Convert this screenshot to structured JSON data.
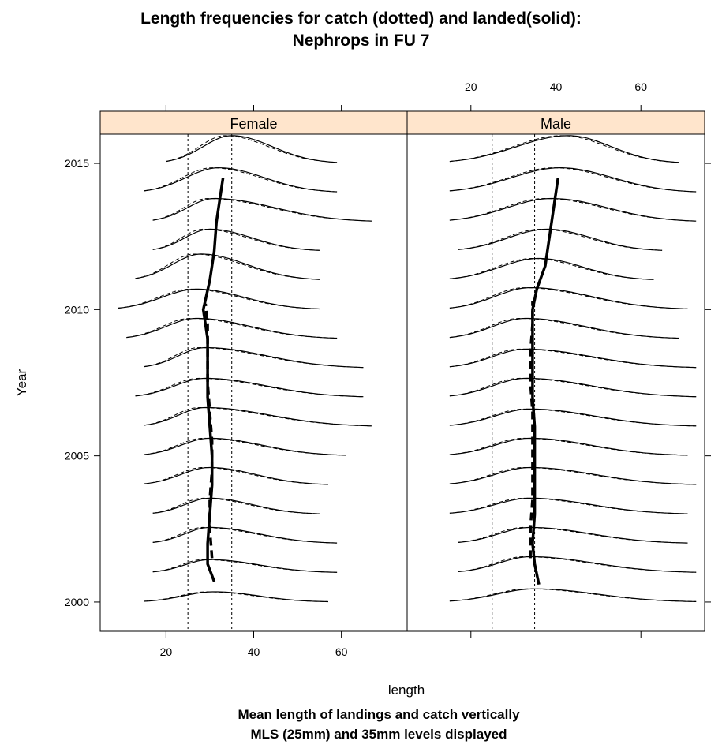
{
  "chart_data": {
    "type": "line",
    "title": "Length frequencies for catch (dotted) and landed(solid):",
    "subtitle": "Nephrops in FU 7",
    "xlabel": "length",
    "ylabel": "Year",
    "notes": [
      "Mean length of landings and catch vertically",
      "MLS (25mm) and 35mm levels displayed"
    ],
    "panels": [
      "Female",
      "Male"
    ],
    "strip_color": "#ffe5cc",
    "xlim": [
      5,
      75
    ],
    "ylim": [
      1999,
      2016
    ],
    "xticks": [
      20,
      40,
      60
    ],
    "yticks": [
      2000,
      2005,
      2010,
      2015
    ],
    "reference_lines": [
      25,
      35
    ],
    "years": [
      2000,
      2001,
      2002,
      2003,
      2004,
      2005,
      2006,
      2007,
      2008,
      2009,
      2010,
      2011,
      2012,
      2013,
      2014,
      2015
    ],
    "series": [
      {
        "name": "Female",
        "curves": [
          {
            "year": 2000,
            "min": 15,
            "max": 57,
            "mode": 31,
            "height": 0.35
          },
          {
            "year": 2001,
            "min": 17,
            "max": 59,
            "mode": 30,
            "height": 0.45
          },
          {
            "year": 2002,
            "min": 17,
            "max": 59,
            "mode": 30,
            "height": 0.55
          },
          {
            "year": 2003,
            "min": 17,
            "max": 55,
            "mode": 30,
            "height": 0.55
          },
          {
            "year": 2004,
            "min": 15,
            "max": 57,
            "mode": 30,
            "height": 0.6
          },
          {
            "year": 2005,
            "min": 15,
            "max": 61,
            "mode": 30,
            "height": 0.6
          },
          {
            "year": 2006,
            "min": 15,
            "max": 67,
            "mode": 29,
            "height": 0.65
          },
          {
            "year": 2007,
            "min": 13,
            "max": 65,
            "mode": 29,
            "height": 0.65
          },
          {
            "year": 2008,
            "min": 15,
            "max": 65,
            "mode": 29,
            "height": 0.7
          },
          {
            "year": 2009,
            "min": 11,
            "max": 59,
            "mode": 27,
            "height": 0.7
          },
          {
            "year": 2010,
            "min": 9,
            "max": 55,
            "mode": 27,
            "height": 0.7
          },
          {
            "year": 2011,
            "min": 13,
            "max": 55,
            "mode": 28,
            "height": 0.9
          },
          {
            "year": 2012,
            "min": 17,
            "max": 55,
            "mode": 30,
            "height": 0.75
          },
          {
            "year": 2013,
            "min": 17,
            "max": 67,
            "mode": 31,
            "height": 0.8
          },
          {
            "year": 2014,
            "min": 15,
            "max": 59,
            "mode": 32,
            "height": 0.85
          },
          {
            "year": 2015,
            "min": 20,
            "max": 59,
            "mode": 35,
            "height": 0.95
          }
        ],
        "mean_landings": [
          [
            31,
            2000.7
          ],
          [
            29.5,
            2001.3
          ],
          [
            29.5,
            2002
          ],
          [
            30,
            2003
          ],
          [
            30.5,
            2004
          ],
          [
            30.5,
            2005
          ],
          [
            30,
            2006
          ],
          [
            29.5,
            2007
          ],
          [
            29.5,
            2008
          ],
          [
            29.5,
            2009
          ],
          [
            28.5,
            2010
          ],
          [
            30,
            2011
          ],
          [
            31,
            2012
          ],
          [
            31.5,
            2013
          ],
          [
            32.5,
            2014
          ],
          [
            33,
            2014.5
          ]
        ],
        "mean_catch": [
          [
            30.5,
            2001.5
          ],
          [
            30,
            2002.5
          ],
          [
            30,
            2003.5
          ],
          [
            30.5,
            2004.5
          ],
          [
            30.5,
            2005.5
          ],
          [
            30,
            2006.5
          ],
          [
            29.5,
            2007.5
          ],
          [
            29.5,
            2008.5
          ],
          [
            29.5,
            2009.5
          ],
          [
            29,
            2010.2
          ]
        ]
      },
      {
        "name": "Male",
        "curves": [
          {
            "year": 2000,
            "min": 15,
            "max": 73,
            "mode": 35,
            "height": 0.45
          },
          {
            "year": 2001,
            "min": 17,
            "max": 73,
            "mode": 34,
            "height": 0.55
          },
          {
            "year": 2002,
            "min": 17,
            "max": 71,
            "mode": 34,
            "height": 0.55
          },
          {
            "year": 2003,
            "min": 15,
            "max": 71,
            "mode": 34,
            "height": 0.55
          },
          {
            "year": 2004,
            "min": 15,
            "max": 73,
            "mode": 34,
            "height": 0.6
          },
          {
            "year": 2005,
            "min": 15,
            "max": 71,
            "mode": 34,
            "height": 0.6
          },
          {
            "year": 2006,
            "min": 15,
            "max": 73,
            "mode": 34,
            "height": 0.6
          },
          {
            "year": 2007,
            "min": 15,
            "max": 73,
            "mode": 33,
            "height": 0.65
          },
          {
            "year": 2008,
            "min": 15,
            "max": 73,
            "mode": 33,
            "height": 0.65
          },
          {
            "year": 2009,
            "min": 15,
            "max": 69,
            "mode": 33,
            "height": 0.7
          },
          {
            "year": 2010,
            "min": 15,
            "max": 71,
            "mode": 34,
            "height": 0.75
          },
          {
            "year": 2011,
            "min": 15,
            "max": 63,
            "mode": 36,
            "height": 0.75
          },
          {
            "year": 2012,
            "min": 17,
            "max": 65,
            "mode": 38,
            "height": 0.75
          },
          {
            "year": 2013,
            "min": 15,
            "max": 73,
            "mode": 39,
            "height": 0.8
          },
          {
            "year": 2014,
            "min": 15,
            "max": 73,
            "mode": 41,
            "height": 0.85
          },
          {
            "year": 2015,
            "min": 15,
            "max": 69,
            "mode": 43,
            "height": 0.95
          }
        ],
        "mean_landings": [
          [
            36,
            2000.6
          ],
          [
            35,
            2001.3
          ],
          [
            34.5,
            2002
          ],
          [
            35,
            2003
          ],
          [
            35,
            2004
          ],
          [
            35,
            2005
          ],
          [
            35,
            2006
          ],
          [
            34.5,
            2007
          ],
          [
            34.5,
            2008
          ],
          [
            34.5,
            2009
          ],
          [
            34.5,
            2010
          ],
          [
            35.5,
            2010.7
          ],
          [
            37.5,
            2011.5
          ],
          [
            38.5,
            2012.5
          ],
          [
            39.5,
            2013.5
          ],
          [
            40.5,
            2014.5
          ]
        ],
        "mean_catch": [
          [
            34,
            2001.5
          ],
          [
            34,
            2002.5
          ],
          [
            34.5,
            2003.5
          ],
          [
            34.5,
            2004.5
          ],
          [
            34.5,
            2005.5
          ],
          [
            34.5,
            2006.5
          ],
          [
            34,
            2007.5
          ],
          [
            34,
            2008.5
          ],
          [
            34.5,
            2009.5
          ],
          [
            34.5,
            2010.3
          ]
        ]
      }
    ]
  }
}
